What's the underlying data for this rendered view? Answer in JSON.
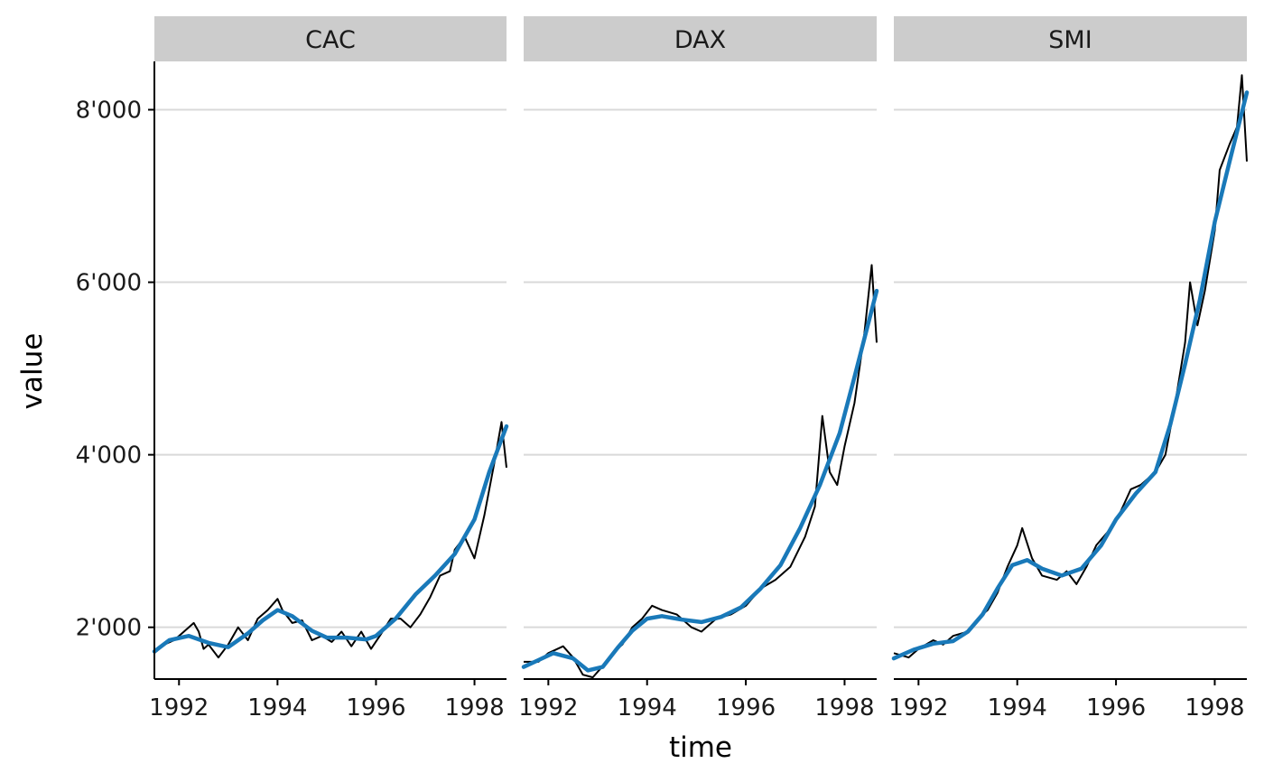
{
  "chart_data": {
    "type": "line",
    "facet_by": "variable",
    "panels": [
      {
        "name": "CAC",
        "series": [
          {
            "name": "",
            "kind": "raw",
            "x": [
              1991.5,
              1991.7,
              1991.9,
              1992.1,
              1992.3,
              1992.4,
              1992.5,
              1992.6,
              1992.8,
              1993.0,
              1993.2,
              1993.4,
              1993.6,
              1993.8,
              1994.0,
              1994.1,
              1994.3,
              1994.5,
              1994.7,
              1994.9,
              1995.1,
              1995.3,
              1995.5,
              1995.7,
              1995.9,
              1996.1,
              1996.3,
              1996.5,
              1996.7,
              1996.9,
              1997.1,
              1997.3,
              1997.5,
              1997.6,
              1997.8,
              1998.0,
              1998.2,
              1998.4,
              1998.55,
              1998.65
            ],
            "y": [
              1700,
              1800,
              1850,
              1950,
              2050,
              1950,
              1750,
              1800,
              1650,
              1800,
              2000,
              1850,
              2100,
              2200,
              2330,
              2200,
              2050,
              2080,
              1850,
              1900,
              1830,
              1950,
              1780,
              1950,
              1750,
              1920,
              2100,
              2100,
              2000,
              2150,
              2350,
              2600,
              2650,
              2900,
              3050,
              2800,
              3300,
              3900,
              4380,
              3850
            ]
          },
          {
            "name": "",
            "kind": "smooth",
            "x": [
              1991.5,
              1991.8,
              1992.2,
              1992.6,
              1993.0,
              1993.4,
              1993.7,
              1994.0,
              1994.3,
              1994.7,
              1995.0,
              1995.4,
              1995.8,
              1996.0,
              1996.4,
              1996.8,
              1997.2,
              1997.6,
              1998.0,
              1998.3,
              1998.65
            ],
            "y": [
              1720,
              1850,
              1900,
              1820,
              1770,
              1930,
              2080,
              2200,
              2130,
              1960,
              1880,
              1880,
              1860,
              1900,
              2100,
              2380,
              2600,
              2850,
              3250,
              3800,
              4330
            ]
          }
        ]
      },
      {
        "name": "DAX",
        "series": [
          {
            "name": "",
            "kind": "raw",
            "x": [
              1991.5,
              1991.8,
              1992.0,
              1992.3,
              1992.5,
              1992.7,
              1992.9,
              1993.1,
              1993.3,
              1993.5,
              1993.7,
              1993.9,
              1994.1,
              1994.3,
              1994.6,
              1994.9,
              1995.1,
              1995.4,
              1995.7,
              1996.0,
              1996.3,
              1996.6,
              1996.9,
              1997.2,
              1997.4,
              1997.55,
              1997.7,
              1997.85,
              1998.0,
              1998.2,
              1998.4,
              1998.55,
              1998.65
            ],
            "y": [
              1600,
              1600,
              1700,
              1780,
              1650,
              1450,
              1420,
              1550,
              1700,
              1800,
              2000,
              2100,
              2250,
              2200,
              2150,
              2000,
              1950,
              2100,
              2150,
              2250,
              2450,
              2550,
              2700,
              3050,
              3400,
              4450,
              3800,
              3650,
              4100,
              4600,
              5400,
              6200,
              5300
            ]
          },
          {
            "name": "",
            "kind": "smooth",
            "x": [
              1991.5,
              1991.8,
              1992.1,
              1992.5,
              1992.8,
              1993.1,
              1993.4,
              1993.7,
              1994.0,
              1994.3,
              1994.7,
              1995.1,
              1995.5,
              1995.9,
              1996.3,
              1996.7,
              1997.1,
              1997.5,
              1997.9,
              1998.2,
              1998.65
            ],
            "y": [
              1540,
              1620,
              1700,
              1640,
              1500,
              1540,
              1760,
              1960,
              2100,
              2130,
              2090,
              2060,
              2120,
              2230,
              2450,
              2720,
              3150,
              3650,
              4250,
              4900,
              5900
            ]
          }
        ]
      },
      {
        "name": "SMI",
        "series": [
          {
            "name": "",
            "kind": "raw",
            "x": [
              1991.5,
              1991.8,
              1992.0,
              1992.3,
              1992.5,
              1992.7,
              1993.0,
              1993.2,
              1993.4,
              1993.6,
              1993.8,
              1994.0,
              1994.1,
              1994.3,
              1994.5,
              1994.8,
              1995.0,
              1995.2,
              1995.4,
              1995.6,
              1995.9,
              1996.1,
              1996.3,
              1996.5,
              1996.8,
              1997.0,
              1997.2,
              1997.4,
              1997.5,
              1997.65,
              1997.8,
              1998.0,
              1998.1,
              1998.3,
              1998.45,
              1998.55,
              1998.65
            ],
            "y": [
              1700,
              1650,
              1750,
              1850,
              1800,
              1900,
              1950,
              2100,
              2200,
              2400,
              2700,
              2950,
              3150,
              2800,
              2600,
              2550,
              2650,
              2500,
              2700,
              2950,
              3150,
              3350,
              3600,
              3650,
              3800,
              4000,
              4600,
              5300,
              6000,
              5500,
              5900,
              6600,
              7300,
              7600,
              7800,
              8400,
              7400
            ]
          },
          {
            "name": "",
            "kind": "smooth",
            "x": [
              1991.5,
              1991.9,
              1992.3,
              1992.7,
              1993.0,
              1993.3,
              1993.6,
              1993.9,
              1994.2,
              1994.5,
              1994.9,
              1995.3,
              1995.7,
              1996.0,
              1996.4,
              1996.8,
              1997.1,
              1997.4,
              1997.7,
              1998.0,
              1998.3,
              1998.65
            ],
            "y": [
              1640,
              1740,
              1810,
              1840,
              1950,
              2150,
              2450,
              2720,
              2780,
              2680,
              2600,
              2680,
              2950,
              3250,
              3550,
              3800,
              4350,
              5050,
              5800,
              6700,
              7400,
              8200
            ]
          }
        ]
      }
    ],
    "xlabel": "time",
    "ylabel": "value",
    "x_ticks": [
      1992,
      1994,
      1996,
      1998
    ],
    "x_tick_labels": [
      "1992",
      "1994",
      "1996",
      "1998"
    ],
    "y_ticks": [
      2000,
      4000,
      6000,
      8000
    ],
    "y_tick_labels": [
      "2'000",
      "4'000",
      "6'000",
      "8'000"
    ],
    "xlim": [
      1991.5,
      1998.65
    ],
    "ylim": [
      1400,
      8560
    ],
    "grid": "horizontal-major",
    "legend": "none",
    "colors": {
      "raw": "#000000",
      "smooth": "#1979b9",
      "strip": "#cccccc",
      "grid": "#d9d9d9"
    }
  }
}
